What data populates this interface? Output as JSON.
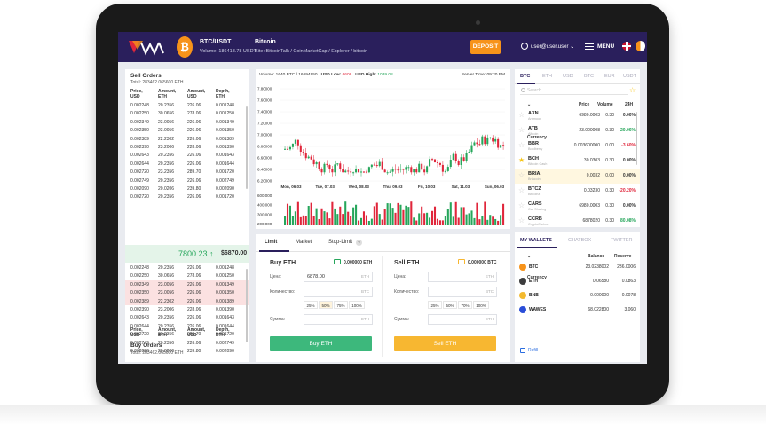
{
  "header": {
    "pair": "BTC/USDT",
    "volume": "Volume: 186418.78  USDT",
    "coin": "Bitcoin",
    "site": "Site: BitcoinTalk / CoinMarketCap / Explorer / bitcoin",
    "deposit": "DEPOSIT",
    "user": "user@user.user",
    "menu": "MENU",
    "coin_icon": "bitcoin-icon",
    "accent": "#f7931a"
  },
  "sell_orders": {
    "title": "Sell Orders",
    "total": "Total: 283462.065600 ETH",
    "headers": [
      "Price,\nUSD",
      "Amount,\nETH",
      "Amount,\nUSD",
      "Depth,\nETH"
    ],
    "rows": [
      [
        "0.002248",
        "20.2356",
        "226.06",
        "0.001248"
      ],
      [
        "0.002250",
        "30.0656",
        "278.06",
        "0.001250"
      ],
      [
        "0.002349",
        "23.0056",
        "226.06",
        "0.001349"
      ],
      [
        "0.002350",
        "23.0056",
        "226.06",
        "0.001350"
      ],
      [
        "0.002389",
        "22.2302",
        "226.06",
        "0.001389"
      ],
      [
        "0.002390",
        "23.2006",
        "228.06",
        "0.001390"
      ],
      [
        "0.002643",
        "20.2356",
        "226.06",
        "0.001643"
      ],
      [
        "0.002644",
        "20.2356",
        "226.06",
        "0.001644"
      ],
      [
        "0.002720",
        "23.2356",
        "289.70",
        "0.001720"
      ],
      [
        "0.002749",
        "20.2356",
        "226.06",
        "0.002749"
      ],
      [
        "0.002090",
        "20.0206",
        "239.80",
        "0.002090"
      ],
      [
        "0.002720",
        "20.2356",
        "226.06",
        "0.001720"
      ]
    ]
  },
  "mid": {
    "price": "7800.23 ↑",
    "usd": "$6870.00"
  },
  "buy_orders": {
    "title": "Buy Orders",
    "total": "Total: 283462.065600 ETH",
    "headers": [
      "Price,\nUSD",
      "Amount,\nETH",
      "Amount,\nUSD",
      "Depth,\nETH"
    ],
    "rows": [
      [
        "0.002248",
        "20.2356",
        "226.06",
        "0.001248"
      ],
      [
        "0.002250",
        "30.0656",
        "278.06",
        "0.001250"
      ],
      [
        "0.002349",
        "23.0056",
        "226.06",
        "0.001349"
      ],
      [
        "0.002350",
        "23.0056",
        "226.06",
        "0.001350"
      ],
      [
        "0.002389",
        "22.2302",
        "226.06",
        "0.001389"
      ],
      [
        "0.002390",
        "23.2006",
        "228.06",
        "0.001390"
      ],
      [
        "0.002643",
        "20.2356",
        "226.06",
        "0.001643"
      ],
      [
        "0.002644",
        "20.2356",
        "226.06",
        "0.001644"
      ],
      [
        "0.002720",
        "23.2356",
        "289.70",
        "0.001720"
      ],
      [
        "0.002749",
        "20.2356",
        "226.06",
        "0.002749"
      ],
      [
        "0.002090",
        "20.0206",
        "239.80",
        "0.002090"
      ]
    ],
    "highlighted_rows": [
      2,
      3,
      4
    ],
    "highlight_color": "#fbe1e1"
  },
  "chart_header": {
    "volume": "Volume: 1640 BTC / 16694950",
    "low_label": "USD Low:",
    "low_value": "6608",
    "high_label": "USD High:",
    "high_value": "1039.08",
    "server_time": "Server Time: 09:20 PM"
  },
  "chart_data": {
    "type": "candlestick",
    "y_ticks": [
      "7.80000",
      "7.60000",
      "7.40000",
      "7.20000",
      "7.00000",
      "6.80000",
      "6.60000",
      "6.40000",
      "6.20000"
    ],
    "ylim": [
      6.2,
      7.8
    ],
    "x_ticks": [
      "Mon, 06.03",
      "Tue, 07.03",
      "Wed, 08.03",
      "Thu, 09.03",
      "Fri, 10.03",
      "Sat, 11.03",
      "Sun, 06.03"
    ],
    "volume_ticks": [
      "600.000",
      "400.000",
      "300.000",
      "200.000"
    ],
    "up_color": "#26a65b",
    "down_color": "#e0263b"
  },
  "trade": {
    "tabs": [
      "Limit",
      "Market",
      "Stop-Limit"
    ],
    "buy": {
      "title": "Buy ETH",
      "balance": "0.000000 ETH",
      "price_label": "Цена:",
      "price_value": "6878.00",
      "price_unit": "ETH",
      "qty_label": "Количество:",
      "qty_unit": "BTC",
      "percents": [
        "25%",
        "50%",
        "75%",
        "100%"
      ],
      "sum_label": "Сумма:",
      "sum_unit": "ETH",
      "button": "Buy ETH",
      "color": "#3db87c"
    },
    "sell": {
      "title": "Sell ETH",
      "balance": "0.000000 BTC",
      "price_label": "Цена:",
      "price_unit": "ETH",
      "qty_label": "Количество:",
      "qty_unit": "BTC",
      "percents": [
        "25%",
        "50%",
        "70%",
        "100%"
      ],
      "sum_label": "Сумма:",
      "sum_unit": "ETH",
      "button": "Sell ETH",
      "color": "#f7b731"
    }
  },
  "markets": {
    "tabs": [
      "BTC",
      "ETH",
      "USD",
      "BTC",
      "EUR",
      "USDT"
    ],
    "search_placeholder": "Search",
    "headers": [
      "Currency",
      "Price",
      "Volume",
      "24H"
    ],
    "rows": [
      {
        "sym": "AXN",
        "name": "Antmoon",
        "price": "6980.0003",
        "vol": "0.30",
        "chg": "0.00%",
        "dir": "flat",
        "fav": false
      },
      {
        "sym": "ATB",
        "name": "Altcoin",
        "price": "23.000008",
        "vol": "0.30",
        "chg": "20.06%",
        "dir": "up",
        "fav": false
      },
      {
        "sym": "BBR",
        "name": "Boolberry",
        "price": "0.003600000",
        "vol": "0.00",
        "chg": "-3.60%",
        "dir": "down",
        "fav": false
      },
      {
        "sym": "BCH",
        "name": "Bitcoin Cash",
        "price": "30.0303",
        "vol": "0.30",
        "chg": "0.00%",
        "dir": "flat",
        "fav": true
      },
      {
        "sym": "BRIA",
        "name": "Briacoin",
        "price": "0.0032",
        "vol": "0.00",
        "chg": "0.00%",
        "dir": "flat",
        "fav": false,
        "selected": true
      },
      {
        "sym": "BTCZ",
        "name": "Bitcoinz",
        "price": "0.03230",
        "vol": "0.30",
        "chg": "-20.20%",
        "dir": "down",
        "fav": false
      },
      {
        "sym": "CARS",
        "name": "Car Sharing",
        "price": "6980.0003",
        "vol": "0.30",
        "chg": "0.00%",
        "dir": "flat",
        "fav": false
      },
      {
        "sym": "CCRB",
        "name": "CryptoCarbon",
        "price": "6878020",
        "vol": "0.30",
        "chg": "80.08%",
        "dir": "up",
        "fav": false
      }
    ]
  },
  "wallets": {
    "tabs": [
      "MY WALLETS",
      "CHATBOX",
      "TWITTER"
    ],
    "headers": [
      "Currency",
      "Balance",
      "Reserve"
    ],
    "rows": [
      {
        "sym": "BTC",
        "balance": "23.0238002",
        "reserve": "236.0006",
        "color": "#f7931a"
      },
      {
        "sym": "ETH",
        "balance": "0.06580",
        "reserve": "0.0863",
        "color": "#3c3c3d"
      },
      {
        "sym": "BNB",
        "balance": "0.000000",
        "reserve": "0.0078",
        "color": "#f3ba2f"
      },
      {
        "sym": "WAWES",
        "balance": "68.022800",
        "reserve": "3.060",
        "color": "#2a4dd8"
      }
    ],
    "refill": "Refill"
  }
}
